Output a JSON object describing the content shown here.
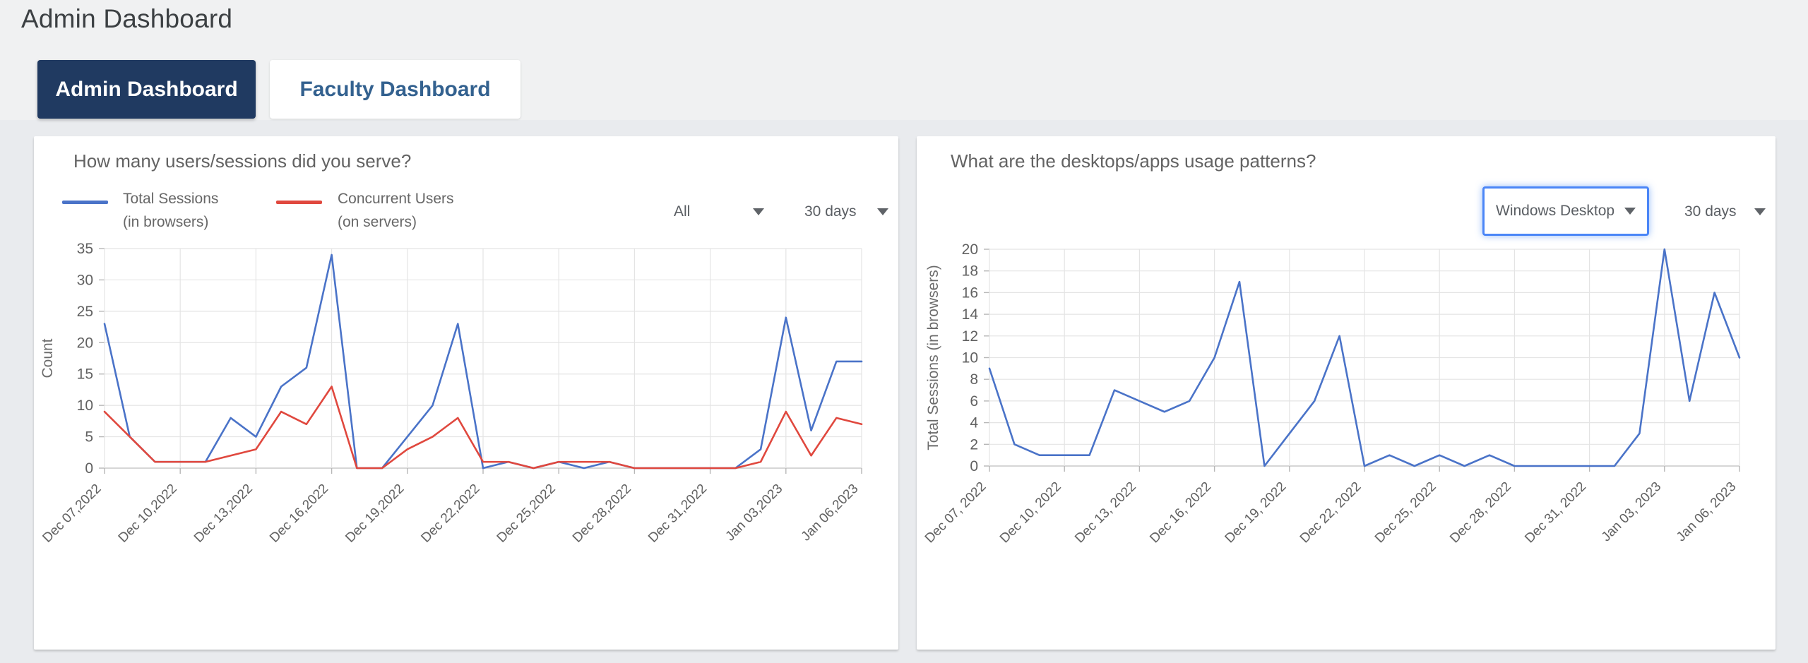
{
  "page": {
    "title": "Admin Dashboard"
  },
  "tabs": [
    {
      "label": "Admin Dashboard",
      "active": true
    },
    {
      "label": "Faculty Dashboard",
      "active": false
    }
  ],
  "colors": {
    "active_tab_bg": "#203a61",
    "inactive_tab_text": "#33618f",
    "focus_border_blue": "#4b86f7",
    "blue_line": "#4a73c8",
    "red_line": "#e0483e"
  },
  "panels": [
    {
      "title": "How many users/sessions did you serve?",
      "legend": [
        {
          "name": "Total Sessions",
          "sub": "(in browsers)",
          "color": "#4a73c8"
        },
        {
          "name": "Concurrent Users",
          "sub": "(on servers)",
          "color": "#e0483e"
        }
      ],
      "filters": {
        "scope": "All",
        "range": "30 days"
      }
    },
    {
      "title": "What are the desktops/apps usage patterns?",
      "filters": {
        "scope": "Windows Desktop",
        "range": "30 days"
      }
    }
  ],
  "chart_data": [
    {
      "type": "line",
      "title": "How many users/sessions did you serve?",
      "ylabel": "Count",
      "ylim": [
        0,
        35
      ],
      "ytick_step": 5,
      "grid": true,
      "n_points": 31,
      "tick_every": 3,
      "x_tick_labels": [
        "Dec 07,2022",
        "Dec 10,2022",
        "Dec 13,2022",
        "Dec 16,2022",
        "Dec 19,2022",
        "Dec 22,2022",
        "Dec 25,2022",
        "Dec 28,2022",
        "Dec 31,2022",
        "Jan 03,2023",
        "Jan 06,2023"
      ],
      "series": [
        {
          "name": "Total Sessions (in browsers)",
          "color": "#4a73c8",
          "values": [
            23,
            5,
            1,
            1,
            1,
            8,
            5,
            13,
            16,
            34,
            0,
            0,
            5,
            10,
            23,
            0,
            1,
            0,
            1,
            0,
            1,
            0,
            0,
            0,
            0,
            0,
            3,
            24,
            6,
            17,
            17
          ]
        },
        {
          "name": "Concurrent Users (on servers)",
          "color": "#e0483e",
          "values": [
            9,
            5,
            1,
            1,
            1,
            2,
            3,
            9,
            7,
            13,
            0,
            0,
            3,
            5,
            8,
            1,
            1,
            0,
            1,
            1,
            1,
            0,
            0,
            0,
            0,
            0,
            1,
            9,
            2,
            8,
            7
          ]
        }
      ]
    },
    {
      "type": "line",
      "title": "What are the desktops/apps usage patterns?",
      "ylabel": "Total Sessions (in browsers)",
      "ylim": [
        0,
        20
      ],
      "ytick_step": 2,
      "grid": true,
      "n_points": 31,
      "tick_every": 3,
      "x_tick_labels": [
        "Dec 07, 2022",
        "Dec 10, 2022",
        "Dec 13, 2022",
        "Dec 16, 2022",
        "Dec 19, 2022",
        "Dec 22, 2022",
        "Dec 25, 2022",
        "Dec 28, 2022",
        "Dec 31, 2022",
        "Jan 03, 2023",
        "Jan 06, 2023"
      ],
      "series": [
        {
          "name": "Total Sessions (in browsers)",
          "color": "#4a73c8",
          "values": [
            9,
            2,
            1,
            1,
            1,
            7,
            6,
            5,
            6,
            10,
            17,
            0,
            3,
            6,
            12,
            0,
            1,
            0,
            1,
            0,
            1,
            0,
            0,
            0,
            0,
            0,
            3,
            20,
            6,
            16,
            10
          ]
        }
      ]
    }
  ]
}
